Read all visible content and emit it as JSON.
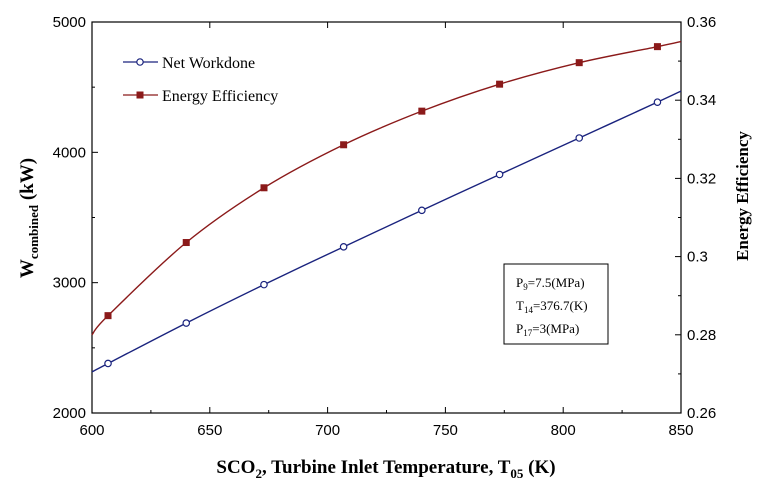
{
  "chart_data": {
    "type": "line",
    "x": [
      606.8,
      640,
      673,
      706.8,
      740,
      773,
      806.8,
      840
    ],
    "xlabel_main": "SCO",
    "xlabel_sub": "2",
    "xlabel_mid": ", Turbine Inlet Temperature, T",
    "xlabel_sub2": "05",
    "xlabel_end": " (K)",
    "ylabel_main": "W",
    "ylabel_sub": "combined",
    "ylabel_end": " (kW)",
    "y2label": "Energy Efficiency",
    "xlim": [
      600,
      850
    ],
    "ylim": [
      2000,
      5000
    ],
    "y2lim": [
      0.26,
      0.36
    ],
    "xticks": [
      "600",
      "650",
      "700",
      "750",
      "800",
      "850"
    ],
    "yticks": [
      "2000",
      "3000",
      "4000",
      "5000"
    ],
    "y2ticks": [
      "0.26",
      "0.28",
      "0.3",
      "0.32",
      "0.34",
      "0.36"
    ],
    "series": [
      {
        "name": "Net Workdone",
        "axis": "left",
        "color": "#1a237e",
        "marker": "open-circle",
        "values": [
          2380,
          2690,
          2985,
          3275,
          3555,
          3830,
          4110,
          4385
        ],
        "line_start": [
          600,
          2315
        ],
        "line_end": [
          850,
          4470
        ]
      },
      {
        "name": "Energy Efficiency",
        "axis": "right",
        "color": "#8b1a1a",
        "marker": "filled-square",
        "values": [
          0.2849,
          0.3036,
          0.3176,
          0.3286,
          0.3372,
          0.3441,
          0.3496,
          0.3537
        ],
        "line_start": [
          600,
          0.28
        ],
        "line_end": [
          850,
          0.355
        ]
      }
    ],
    "legend_position": "top-left",
    "annotation": {
      "lines": [
        {
          "main": "P",
          "sub": "9",
          "rest": "=7.5(MPa)"
        },
        {
          "main": "T",
          "sub": "14",
          "rest": "=376.7(K)"
        },
        {
          "main": "P",
          "sub": "17",
          "rest": "=3(MPa)"
        }
      ]
    }
  }
}
